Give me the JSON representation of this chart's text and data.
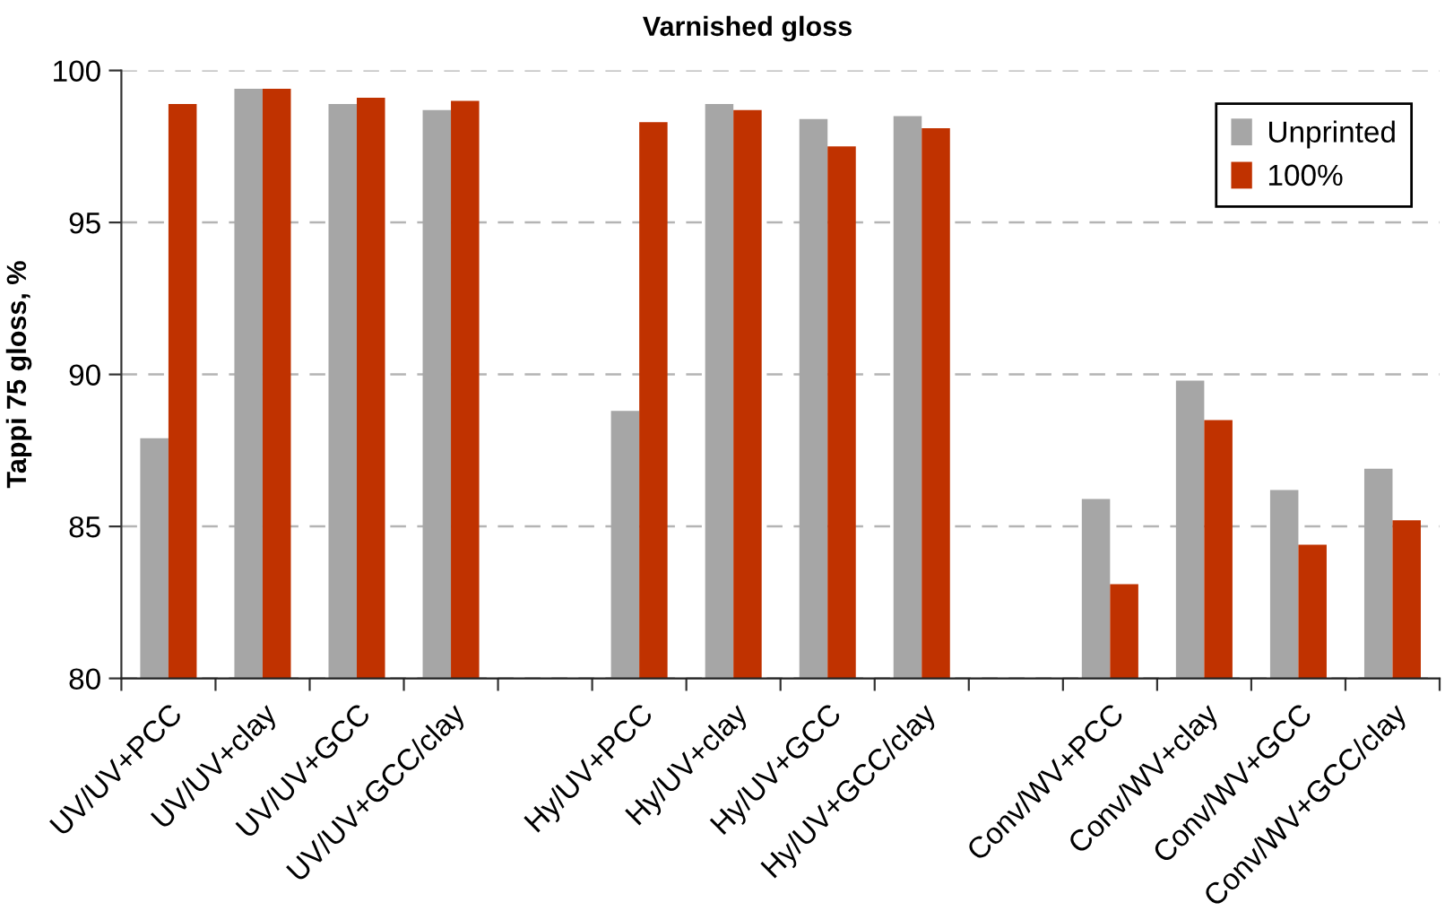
{
  "chart_data": {
    "type": "bar",
    "title": "Varnished gloss",
    "ylabel": "Tappi 75 gloss, %",
    "categories": [
      "UV/UV+PCC",
      "UV/UV+clay",
      "UV/UV+GCC",
      "UV/UV+GCC/clay",
      null,
      "Hy/UV+PCC",
      "Hy/UV+clay",
      "Hy/UV+GCC",
      "Hy/UV+GCC/clay",
      null,
      "Conv/WV+PCC",
      "Conv/WV+clay",
      "Conv/WV+GCC",
      "Conv/WV+GCC/clay"
    ],
    "series": [
      {
        "name": "Unprinted",
        "color": "#a6a6a6",
        "values": [
          87.9,
          99.4,
          98.9,
          98.7,
          null,
          88.8,
          98.9,
          98.4,
          98.5,
          null,
          85.9,
          89.8,
          86.2,
          86.9
        ]
      },
      {
        "name": "100%",
        "color": "#c03200",
        "values": [
          98.9,
          99.4,
          99.1,
          99.0,
          null,
          98.3,
          98.7,
          97.5,
          98.1,
          null,
          83.1,
          88.5,
          84.4,
          85.2
        ]
      }
    ],
    "ylim": [
      80,
      100
    ],
    "yticks": [
      80,
      85,
      90,
      95,
      100
    ],
    "grid": "y",
    "legend": "top right"
  }
}
